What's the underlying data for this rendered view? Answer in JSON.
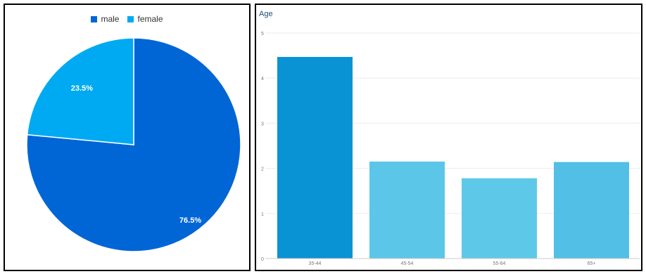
{
  "chart_data": [
    {
      "type": "pie",
      "title": "",
      "legend_position": "top-center",
      "slices": [
        {
          "label": "male",
          "value": 76.5,
          "display": "76.5%",
          "color": "#0066d6"
        },
        {
          "label": "female",
          "value": 23.5,
          "display": "23.5%",
          "color": "#00aaf2"
        }
      ]
    },
    {
      "type": "bar",
      "title": "Age",
      "categories": [
        "35-44",
        "45-54",
        "55-64",
        "65+"
      ],
      "values": [
        4.47,
        2.15,
        1.78,
        2.14
      ],
      "bar_colors": [
        "#0a93d4",
        "#5bc6e8",
        "#5ec8e8",
        "#52bfe6"
      ],
      "ylim": [
        0,
        5
      ],
      "yticks": [
        "0",
        "1",
        "2",
        "3",
        "4",
        "5"
      ],
      "xlabel": "",
      "ylabel": "",
      "grid": true
    }
  ]
}
